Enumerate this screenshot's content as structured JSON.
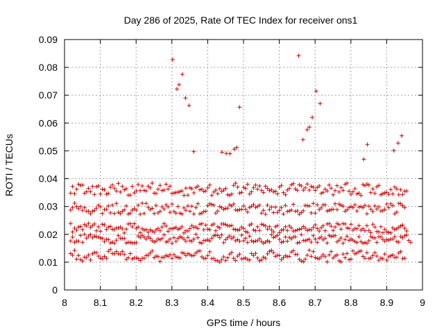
{
  "chart_data": {
    "type": "scatter",
    "title": "Day 286 of 2025, Rate Of TEC Index for receiver ons1",
    "xlabel": "GPS time / hours",
    "ylabel": "ROTI / TECUs",
    "xlim": [
      8,
      9
    ],
    "ylim": [
      0,
      0.09
    ],
    "x_ticks": [
      "8",
      "8.1",
      "8.2",
      "8.3",
      "8.4",
      "8.5",
      "8.6",
      "8.7",
      "8.8",
      "8.9",
      "9"
    ],
    "y_ticks": [
      "0",
      "0.01",
      "0.02",
      "0.03",
      "0.04",
      "0.05",
      "0.06",
      "0.07",
      "0.08",
      "0.09"
    ],
    "grid": true,
    "marker": "+",
    "color": "#cc0000",
    "x_data_range": [
      8.017,
      8.967
    ],
    "sample_interval_s": 20,
    "bands": [
      {
        "y": [
          0.0131,
          0.0125,
          0.0142,
          0.0111,
          0.0124,
          0.0109,
          0.0104,
          0.0118,
          0.0117,
          0.0126,
          0.0108,
          0.013,
          0.0135,
          0.0134,
          0.0122,
          0.0114,
          0.0113,
          0.0121,
          0.0114,
          0.0139,
          0.0146,
          0.0131,
          0.013,
          0.0138,
          0.013,
          0.0129,
          0.0138,
          0.0128,
          0.011,
          0.0116,
          0.0131,
          0.0112,
          0.0115,
          0.0115,
          0.0113,
          0.0106,
          0.0114,
          0.0114,
          0.0124,
          0.0125,
          0.0133,
          0.014,
          0.0116,
          0.0122,
          0.012,
          0.0103,
          0.0117,
          0.0118,
          0.0124,
          0.0121,
          0.0127,
          0.0114,
          0.0127,
          0.0119,
          0.0117,
          0.0115,
          0.0134,
          0.0132,
          0.0124,
          0.0131,
          0.0127,
          0.0123,
          0.0124,
          0.0133,
          0.0139,
          0.014,
          0.0119,
          0.0113,
          0.0114,
          0.0124,
          0.0137,
          0.0113,
          0.0113,
          0.0106,
          0.0105,
          0.01,
          0.0109,
          0.0119,
          0.0106,
          0.0116,
          0.0129,
          0.0135,
          0.0114,
          0.0106,
          0.0122,
          0.0129,
          0.0112,
          0.0113,
          0.0115,
          0.0109,
          0.0108,
          0.0131,
          0.0124,
          0.0132,
          0.0115,
          0.0105,
          0.0108,
          0.0118,
          0.0114,
          0.013,
          0.0139,
          0.0142,
          0.0134,
          0.0121,
          0.0125,
          0.0124,
          0.0109,
          0.0116,
          0.0123,
          0.012,
          0.0121,
          0.0136,
          0.0141,
          0.0128,
          0.0128,
          0.011,
          0.0104,
          0.0102,
          0.0111,
          0.0125,
          0.0143,
          0.0121,
          0.0138,
          0.0116,
          0.0114,
          0.0112,
          0.0119,
          0.0127,
          0.012,
          0.0101,
          0.0126,
          0.0138,
          0.0115,
          0.0122,
          0.0126,
          0.0105,
          0.0101,
          0.0129,
          0.0116,
          0.0131,
          0.0109,
          0.0111,
          0.014,
          0.013,
          0.0133,
          0.0138,
          0.014,
          0.0121,
          0.0114,
          0.0134,
          0.0113,
          0.0115,
          0.0124,
          0.0134,
          0.0122,
          0.0107,
          0.0115,
          0.0112,
          0.0129,
          0.0107,
          0.0119,
          0.0123,
          0.0126,
          0.0117,
          0.0118,
          0.0133,
          0.0138,
          0.0113,
          0.0114
        ]
      },
      {
        "y": [
          0.0176,
          0.019,
          0.0171,
          0.0176,
          0.0175,
          0.0196,
          0.0171,
          0.02,
          0.0186,
          0.0194,
          0.0199,
          0.0188,
          0.0194,
          0.0191,
          0.019,
          0.0187,
          0.0185,
          0.0174,
          0.0182,
          0.0181,
          0.0169,
          0.0172,
          0.0168,
          0.0179,
          0.0195,
          0.0185,
          0.0185,
          0.0185,
          0.0169,
          0.0171,
          0.0171,
          0.0169,
          0.0169,
          0.017,
          0.0194,
          0.0189,
          0.0196,
          0.019,
          0.0183,
          0.0191,
          0.0186,
          0.0177,
          0.0172,
          0.0176,
          0.0184,
          0.018,
          0.0185,
          0.0198,
          0.0172,
          0.0175,
          0.0183,
          0.0168,
          0.0188,
          0.0175,
          0.0185,
          0.0191,
          0.0189,
          0.0183,
          0.0175,
          0.0189,
          0.0177,
          0.0175,
          0.0183,
          0.02,
          0.0188,
          0.017,
          0.0168,
          0.0178,
          0.0178,
          0.018,
          0.0176,
          0.0186,
          0.0195,
          0.0197,
          0.0196,
          0.0188,
          0.0198,
          0.017,
          0.0181,
          0.0188,
          0.0194,
          0.0185,
          0.019,
          0.0177,
          0.0181,
          0.0175,
          0.0197,
          0.0177,
          0.0186,
          0.0171,
          0.0193,
          0.0177,
          0.0173,
          0.0176,
          0.0177,
          0.0184,
          0.0174,
          0.0168,
          0.0172,
          0.0177,
          0.0173,
          0.0199,
          0.0189,
          0.0191,
          0.0196,
          0.0182,
          0.0171,
          0.0174,
          0.019,
          0.0175,
          0.0189,
          0.0184,
          0.019,
          0.0191,
          0.0169,
          0.0171,
          0.0199,
          0.0178,
          0.0177,
          0.018,
          0.0182,
          0.0172,
          0.0195,
          0.0183,
          0.0171,
          0.0186,
          0.019,
          0.018,
          0.0186,
          0.0169,
          0.0196,
          0.0192,
          0.0194,
          0.0195,
          0.0173,
          0.0179,
          0.0187,
          0.0168,
          0.0181,
          0.0193,
          0.0178,
          0.0183,
          0.0179,
          0.0174,
          0.017,
          0.0191,
          0.0174,
          0.0168,
          0.017,
          0.0168,
          0.0177,
          0.0192,
          0.0188,
          0.0187,
          0.0171,
          0.0191,
          0.0191,
          0.0182,
          0.0175,
          0.0181,
          0.0179,
          0.0183,
          0.0183,
          0.0191,
          0.0174,
          0.0172,
          0.0192,
          0.0188,
          0.0195,
          0.0197,
          0.0178,
          0.0171
        ]
      },
      {
        "y": [
          0.0239,
          0.0209,
          0.0222,
          0.0215,
          0.0226,
          0.0228,
          0.0217,
          0.0235,
          0.023,
          0.0239,
          0.0225,
          0.0231,
          0.0237,
          0.0213,
          0.0227,
          0.0211,
          0.0236,
          0.0234,
          0.0218,
          0.0226,
          0.0228,
          0.0218,
          0.0217,
          0.0223,
          0.0222,
          0.0226,
          0.022,
          0.0205,
          0.0219,
          0.0237,
          0.0238,
          0.0227,
          0.0238,
          0.0222,
          0.0226,
          0.0206,
          0.022,
          0.0215,
          0.0217,
          0.0208,
          0.0216,
          0.0212,
          0.0208,
          0.0216,
          0.0221,
          0.0213,
          0.0226,
          0.0238,
          0.023,
          0.0211,
          0.022,
          0.022,
          0.0222,
          0.0225,
          0.0218,
          0.0221,
          0.0227,
          0.0205,
          0.0213,
          0.0212,
          0.0221,
          0.0231,
          0.0225,
          0.0226,
          0.0221,
          0.0236,
          0.0238,
          0.0217,
          0.0233,
          0.0219,
          0.0217,
          0.0233,
          0.0237,
          0.0213,
          0.0227,
          0.0223,
          0.0237,
          0.0237,
          0.0235,
          0.0231,
          0.023,
          0.0232,
          0.0219,
          0.0217,
          0.0215,
          0.0217,
          0.0226,
          0.0221,
          0.021,
          0.0207,
          0.0233,
          0.0237,
          0.0216,
          0.0213,
          0.0227,
          0.0214,
          0.0236,
          0.0234,
          0.023,
          0.0219,
          0.0227,
          0.0216,
          0.0209,
          0.0227,
          0.0231,
          0.0206,
          0.0215,
          0.0217,
          0.0227,
          0.0214,
          0.023,
          0.0223,
          0.0212,
          0.0213,
          0.0216,
          0.0218,
          0.022,
          0.0228,
          0.0222,
          0.0214,
          0.0217,
          0.0216,
          0.0225,
          0.0234,
          0.0221,
          0.0212,
          0.0224,
          0.0231,
          0.0213,
          0.0237,
          0.0238,
          0.0229,
          0.0214,
          0.0226,
          0.0239,
          0.0235,
          0.0219,
          0.0238,
          0.0237,
          0.0223,
          0.0221,
          0.0236,
          0.0215,
          0.0221,
          0.022,
          0.0231,
          0.0215,
          0.022,
          0.0213,
          0.0231,
          0.0214,
          0.0206,
          0.0236,
          0.0226,
          0.021,
          0.0209,
          0.0227,
          0.0206,
          0.0218,
          0.0209,
          0.0207,
          0.0205,
          0.0223,
          0.0217,
          0.022,
          0.0225,
          0.023,
          0.0233,
          0.0222,
          0.0212
        ]
      },
      {
        "y": [
          0.0287,
          0.0296,
          0.0312,
          0.03,
          0.0292,
          0.03,
          0.0286,
          0.0296,
          0.0283,
          0.0283,
          0.0274,
          0.0283,
          0.0286,
          0.0294,
          0.0305,
          0.0299,
          0.0275,
          0.0289,
          0.029,
          0.0302,
          0.0277,
          0.0305,
          0.0275,
          0.0311,
          0.0279,
          0.0275,
          0.0283,
          0.0288,
          0.0302,
          0.0273,
          0.0276,
          0.0287,
          0.0292,
          0.0287,
          0.0305,
          0.0272,
          0.0312,
          0.0275,
          0.0311,
          0.0297,
          0.0289,
          0.0293,
          0.0275,
          0.0304,
          0.0277,
          0.0283,
          0.0299,
          0.0291,
          0.0306,
          0.0299,
          0.0279,
          0.0309,
          0.0282,
          0.0276,
          0.03,
          0.0276,
          0.0273,
          0.0295,
          0.0286,
          0.0302,
          0.0283,
          0.0301,
          0.0273,
          0.0296,
          0.031,
          0.0274,
          0.0276,
          0.0282,
          0.0283,
          0.0303,
          0.031,
          0.0307,
          0.0305,
          0.0276,
          0.0284,
          0.03,
          0.0296,
          0.029,
          0.0293,
          0.0294,
          0.0306,
          0.0302,
          0.0309,
          0.0288,
          0.0286,
          0.0289,
          0.029,
          0.0302,
          0.029,
          0.028,
          0.0296,
          0.0301,
          0.0307,
          0.0297,
          0.03,
          0.0305,
          0.0276,
          0.0286,
          0.0272,
          0.0305,
          0.0289,
          0.0298,
          0.0278,
          0.0298,
          0.0279,
          0.0286,
          0.0296,
          0.0273,
          0.0304,
          0.0282,
          0.0284,
          0.0287,
          0.0308,
          0.0283,
          0.0284,
          0.0272,
          0.0278,
          0.0285,
          0.0304,
          0.0303,
          0.0302,
          0.0277,
          0.0311,
          0.0276,
          0.0306,
          0.0289,
          0.0295,
          0.0306,
          0.0306,
          0.0284,
          0.0286,
          0.0289,
          0.029,
          0.031,
          0.0289,
          0.0309,
          0.0305,
          0.0301,
          0.0283,
          0.0288,
          0.0296,
          0.03,
          0.0296,
          0.0306,
          0.0284,
          0.0298,
          0.03,
          0.0296,
          0.0304,
          0.0274,
          0.0301,
          0.029,
          0.0282,
          0.0302,
          0.0291,
          0.0299,
          0.0284,
          0.0285,
          0.029,
          0.0309,
          0.0296,
          0.031,
          0.0303,
          0.0274,
          0.028,
          0.0311,
          0.031,
          0.0303,
          0.0296
        ]
      },
      {
        "y": [
          0.0348,
          0.0372,
          0.0346,
          0.0362,
          0.038,
          0.0376,
          0.0377,
          0.0347,
          0.0353,
          0.0365,
          0.0353,
          0.0372,
          0.0343,
          0.0371,
          0.0374,
          0.0345,
          0.0362,
          0.036,
          0.0344,
          0.0347,
          0.0369,
          0.0377,
          0.0366,
          0.0356,
          0.0383,
          0.0352,
          0.0372,
          0.036,
          0.0364,
          0.0341,
          0.0341,
          0.0372,
          0.0349,
          0.0356,
          0.0379,
          0.0357,
          0.0374,
          0.0358,
          0.0356,
          0.0373,
          0.0367,
          0.0384,
          0.0348,
          0.0347,
          0.0362,
          0.0376,
          0.0357,
          0.0359,
          0.038,
          0.0363,
          0.0373,
          0.0347,
          0.0348,
          0.0351,
          0.0351,
          0.0354,
          0.0356,
          0.034,
          0.0366,
          0.0341,
          0.0367,
          0.0364,
          0.0349,
          0.0368,
          0.0373,
          0.036,
          0.0362,
          0.0354,
          0.0356,
          0.0367,
          0.0377,
          0.034,
          0.0352,
          0.0359,
          0.0346,
          0.0364,
          0.0354,
          0.0359,
          0.0365,
          0.0342,
          0.034,
          0.0345,
          0.0376,
          0.0384,
          0.037,
          0.0348,
          0.0351,
          0.0369,
          0.0365,
          0.038,
          0.0345,
          0.0353,
          0.0367,
          0.0377,
          0.0362,
          0.0374,
          0.0358,
          0.035,
          0.0373,
          0.0365,
          0.0357,
          0.036,
          0.0352,
          0.0355,
          0.0345,
          0.037,
          0.0376,
          0.035,
          0.0342,
          0.0359,
          0.0365,
          0.0378,
          0.0382,
          0.0363,
          0.0358,
          0.0378,
          0.0374,
          0.0359,
          0.0367,
          0.0381,
          0.0359,
          0.0372,
          0.0369,
          0.0358,
          0.0368,
          0.0374,
          0.0347,
          0.0351,
          0.0362,
          0.0356,
          0.0377,
          0.0366,
          0.0342,
          0.0357,
          0.0375,
          0.0352,
          0.0368,
          0.0358,
          0.038,
          0.0384,
          0.0355,
          0.0344,
          0.0353,
          0.0364,
          0.0345,
          0.0348,
          0.034,
          0.0379,
          0.0375,
          0.0381,
          0.0377,
          0.035,
          0.0363,
          0.0347,
          0.0371,
          0.0376,
          0.0342,
          0.0346,
          0.0349,
          0.0351,
          0.0344,
          0.0361,
          0.0345,
          0.037,
          0.0363,
          0.0342,
          0.036,
          0.0343,
          0.0355,
          0.0356
        ]
      }
    ],
    "outliers": {
      "x": [
        8.302,
        8.314,
        8.32,
        8.329,
        8.338,
        8.348,
        8.361,
        8.44,
        8.452,
        8.462,
        8.474,
        8.481,
        8.489,
        8.654,
        8.666,
        8.678,
        8.684,
        8.692,
        8.703,
        8.714,
        8.836,
        8.846,
        8.92,
        8.932,
        8.942
      ],
      "y": [
        0.0828,
        0.0722,
        0.0738,
        0.0775,
        0.069,
        0.0663,
        0.0497,
        0.0495,
        0.0491,
        0.049,
        0.0506,
        0.0512,
        0.0657,
        0.0842,
        0.054,
        0.0576,
        0.0585,
        0.062,
        0.0715,
        0.067,
        0.047,
        0.0523,
        0.0501,
        0.0528,
        0.0554
      ]
    }
  }
}
